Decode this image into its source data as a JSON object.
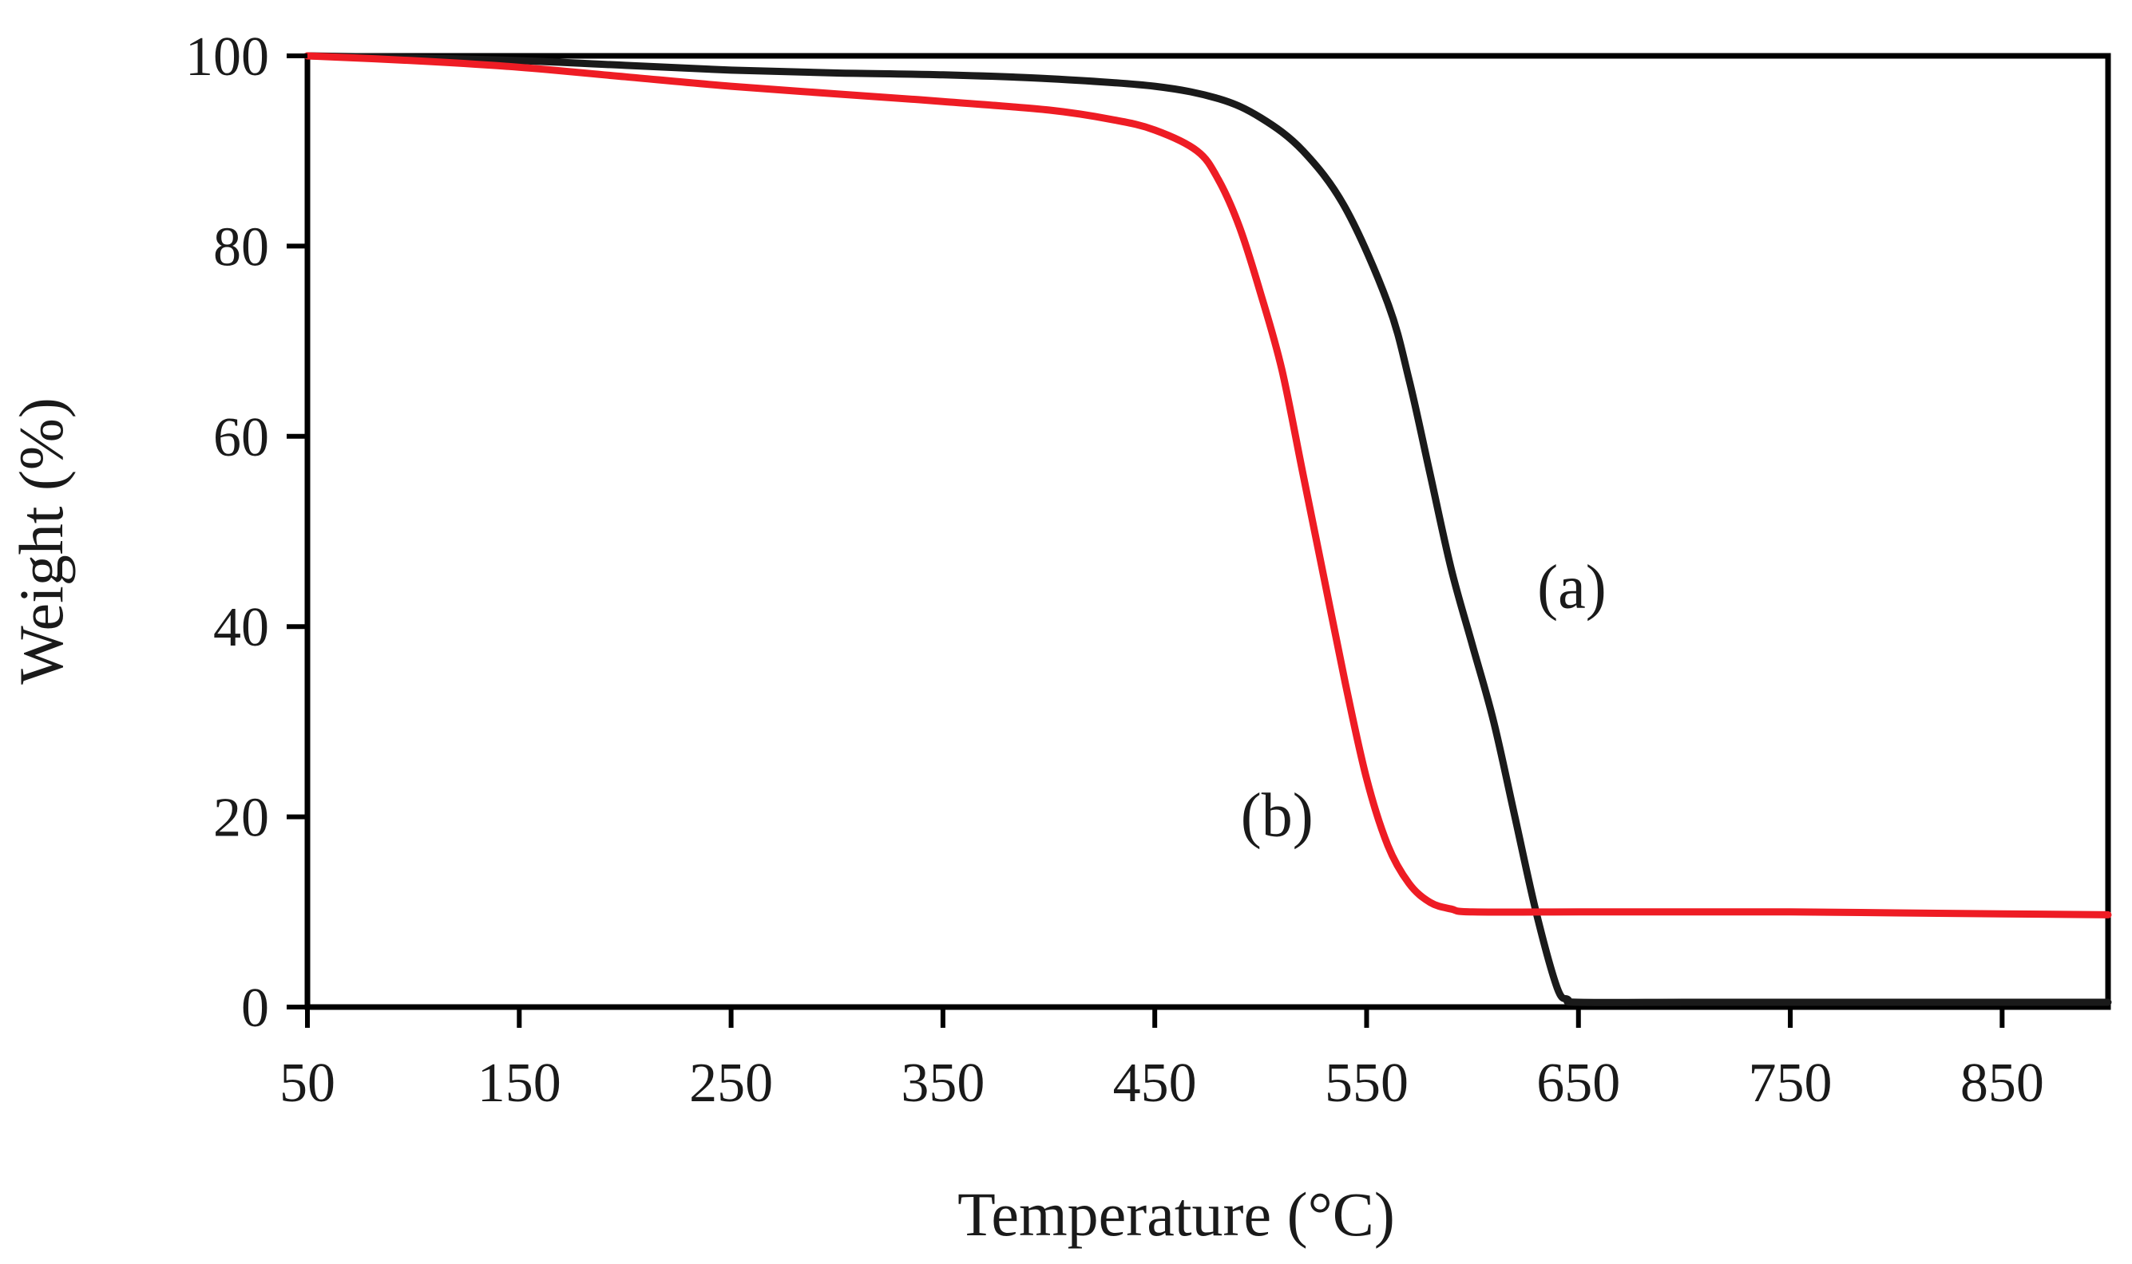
{
  "chart_data": {
    "type": "line",
    "title": "",
    "xlabel": "Temperature (°C)",
    "ylabel": "Weight (%)",
    "xlim": [
      50,
      900
    ],
    "ylim": [
      0,
      100
    ],
    "x_ticks": [
      50,
      150,
      250,
      350,
      450,
      550,
      650,
      750,
      850
    ],
    "y_ticks": [
      0,
      20,
      40,
      60,
      80,
      100
    ],
    "x_tick_labels": [
      "50",
      "150",
      "250",
      "350",
      "450",
      "550",
      "650",
      "750",
      "850"
    ],
    "y_tick_labels": [
      "0",
      "20",
      "40",
      "60",
      "80",
      "100"
    ],
    "grid": false,
    "series": [
      {
        "name": "(a)",
        "color": "#1a1a1a",
        "x": [
          50,
          100,
          150,
          200,
          250,
          300,
          350,
          400,
          450,
          480,
          500,
          520,
          540,
          560,
          570,
          580,
          590,
          600,
          610,
          620,
          630,
          640,
          645,
          650,
          700,
          750,
          800,
          850,
          900
        ],
        "y": [
          100,
          99.8,
          99.5,
          99,
          98.5,
          98.2,
          98,
          97.6,
          96.8,
          95.5,
          93.5,
          90,
          84,
          74,
          66,
          56,
          46,
          38,
          30,
          20,
          10,
          2,
          0.8,
          0.5,
          0.5,
          0.5,
          0.5,
          0.5,
          0.5
        ],
        "label_position": {
          "x": 620,
          "y": 44
        }
      },
      {
        "name": "(b)",
        "color": "#ee1c24",
        "x": [
          50,
          100,
          150,
          200,
          250,
          300,
          350,
          400,
          430,
          450,
          470,
          480,
          490,
          500,
          510,
          520,
          530,
          540,
          550,
          560,
          570,
          580,
          590,
          600,
          650,
          700,
          750,
          800,
          850,
          900
        ],
        "y": [
          100,
          99.5,
          98.8,
          97.8,
          96.8,
          96,
          95.2,
          94.3,
          93.3,
          92.2,
          90,
          87,
          82,
          75,
          67,
          56,
          45,
          34,
          24,
          17,
          13,
          11,
          10.3,
          10,
          10,
          10,
          10,
          9.9,
          9.8,
          9.7
        ],
        "label_position": {
          "x": 480,
          "y": 20
        }
      }
    ]
  }
}
